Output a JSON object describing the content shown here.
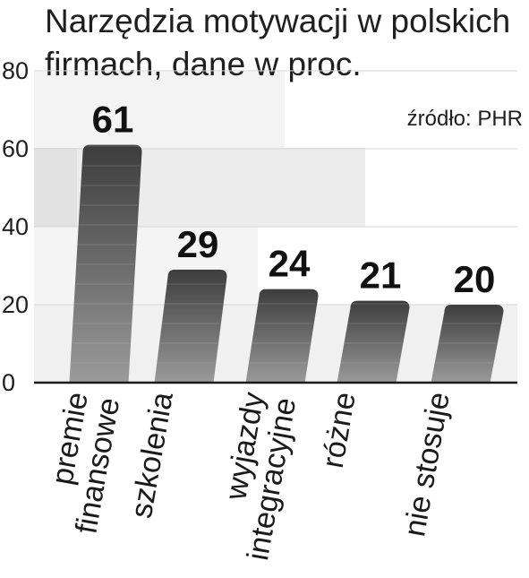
{
  "chart_data": {
    "type": "bar",
    "title_lines": [
      "Narzędzia motywacji w polskich",
      "firmach, dane w proc."
    ],
    "source": "źródło: PHR",
    "categories": [
      [
        "premie",
        "finansowe"
      ],
      [
        "szkolenia"
      ],
      [
        "wyjazdy",
        "integracyjne"
      ],
      [
        "różne"
      ],
      [
        "nie stosuje"
      ]
    ],
    "values": [
      61,
      29,
      24,
      21,
      20
    ],
    "value_labels": [
      "61",
      "29",
      "24",
      "21",
      "20"
    ],
    "y_ticks": [
      "0",
      "20",
      "40",
      "60",
      "80"
    ],
    "ylim": [
      0,
      80
    ],
    "xlabel": "",
    "ylabel": "",
    "grid": true,
    "colors": {
      "bar_top": "#3d3d3d",
      "bar_bottom": "#9a9a9a",
      "axis": "#1a1a1a",
      "text": "#1a1a1a"
    }
  }
}
